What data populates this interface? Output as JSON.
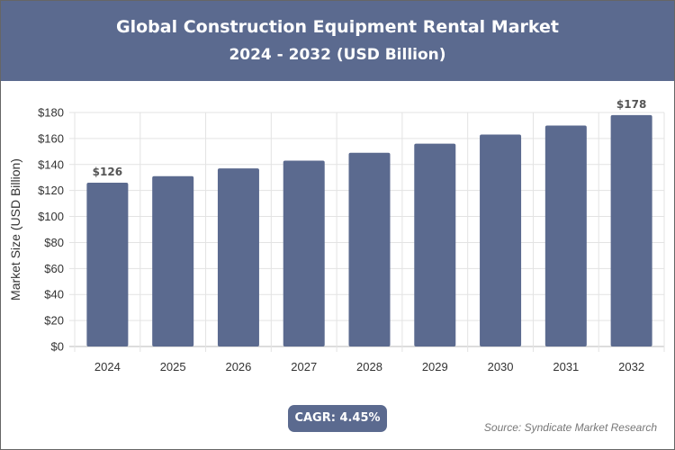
{
  "chart_data": {
    "type": "bar",
    "title": "Global Construction Equipment Rental Market",
    "subtitle": "2024 - 2032 (USD Billion)",
    "ylabel": "Market Size (USD Billion)",
    "xlabel": "",
    "categories": [
      "2024",
      "2025",
      "2026",
      "2027",
      "2028",
      "2029",
      "2030",
      "2031",
      "2032"
    ],
    "values": [
      126,
      131,
      137,
      143,
      149,
      156,
      163,
      170,
      178
    ],
    "data_labels": {
      "0": "$126",
      "8": "$178"
    },
    "ylim": [
      0,
      180
    ],
    "yticks": [
      "$0",
      "$20",
      "$40",
      "$60",
      "$80",
      "$100",
      "$120",
      "$140",
      "$160",
      "$180"
    ],
    "grid": true,
    "bar_color": "#5b6a8f"
  },
  "badge": {
    "cagr": "CAGR: 4.45%"
  },
  "source": "Source: Syndicate Market Research",
  "colors": {
    "header_bg": "#5b6a8f",
    "header_text": "#ffffff"
  }
}
